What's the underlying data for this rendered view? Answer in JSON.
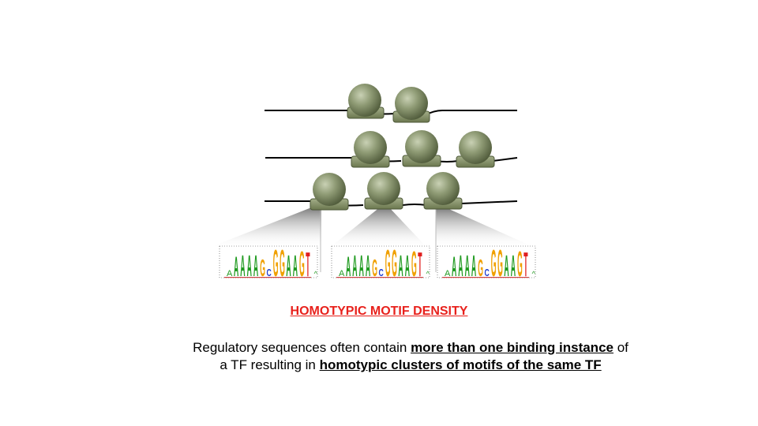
{
  "heading": "HOMOTYPIC MOTIF DENSITY",
  "description": {
    "line1_plain": "Regulatory sequences often contain ",
    "line1_emphasis": "more than one binding instance",
    "line1_end": " of",
    "line2_plain": "a TF resulting in ",
    "line2_emphasis": "homotypic clusters of motifs of the same TF"
  },
  "motif_sequence": "AAAAGCGGAAGT",
  "motif_count": 3,
  "colors": {
    "heading": "#e8211c",
    "A": "#1f9a1f",
    "C": "#1f3fd0",
    "G": "#f0a000",
    "T": "#e02020",
    "protein": "#8e9a74",
    "protein_dark": "#5c6846"
  }
}
